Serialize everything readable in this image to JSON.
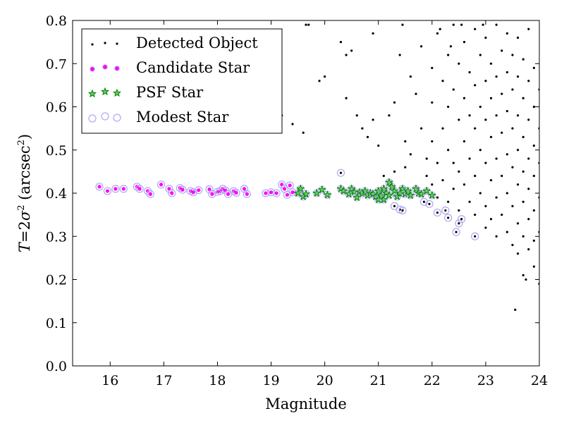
{
  "chart_data": {
    "type": "scatter",
    "xlabel": "Magnitude",
    "ylabel_parts": [
      "T",
      "=",
      "2",
      "σ",
      "2",
      " (arcsec",
      "2",
      ")"
    ],
    "xlim": [
      15.3,
      24
    ],
    "ylim": [
      0.0,
      0.8
    ],
    "x_ticks": [
      "16",
      "17",
      "18",
      "19",
      "20",
      "21",
      "22",
      "23",
      "24"
    ],
    "y_ticks": [
      "0.0",
      "0.1",
      "0.2",
      "0.3",
      "0.4",
      "0.5",
      "0.6",
      "0.7",
      "0.8"
    ],
    "grid": false,
    "legend_position": "top-left",
    "colors": {
      "detected": "#000000",
      "candidate": "#ff00ff",
      "psf": "#008000",
      "modest": "#b0a8f0"
    },
    "series": [
      {
        "name": "Detected Object",
        "marker": "dot",
        "points": [
          [
            19.2,
            0.58
          ],
          [
            19.4,
            0.56
          ],
          [
            19.6,
            0.54
          ],
          [
            19.7,
            0.79
          ],
          [
            19.9,
            0.66
          ],
          [
            20.0,
            0.67
          ],
          [
            20.3,
            0.75
          ],
          [
            20.4,
            0.72
          ],
          [
            20.4,
            0.62
          ],
          [
            20.5,
            0.73
          ],
          [
            20.6,
            0.58
          ],
          [
            20.7,
            0.55
          ],
          [
            20.8,
            0.53
          ],
          [
            20.9,
            0.57
          ],
          [
            21.0,
            0.51
          ],
          [
            21.1,
            0.44
          ],
          [
            21.2,
            0.58
          ],
          [
            21.3,
            0.61
          ],
          [
            21.3,
            0.45
          ],
          [
            21.4,
            0.72
          ],
          [
            21.5,
            0.52
          ],
          [
            21.5,
            0.46
          ],
          [
            21.6,
            0.67
          ],
          [
            21.6,
            0.49
          ],
          [
            21.7,
            0.63
          ],
          [
            21.7,
            0.41
          ],
          [
            21.8,
            0.74
          ],
          [
            21.8,
            0.55
          ],
          [
            21.9,
            0.48
          ],
          [
            21.9,
            0.44
          ],
          [
            22.0,
            0.69
          ],
          [
            22.0,
            0.61
          ],
          [
            22.0,
            0.52
          ],
          [
            22.0,
            0.42
          ],
          [
            22.1,
            0.77
          ],
          [
            22.1,
            0.47
          ],
          [
            22.1,
            0.39
          ],
          [
            22.2,
            0.66
          ],
          [
            22.2,
            0.55
          ],
          [
            22.2,
            0.43
          ],
          [
            22.3,
            0.72
          ],
          [
            22.3,
            0.6
          ],
          [
            22.3,
            0.5
          ],
          [
            22.3,
            0.38
          ],
          [
            22.4,
            0.79
          ],
          [
            22.4,
            0.64
          ],
          [
            22.4,
            0.47
          ],
          [
            22.4,
            0.41
          ],
          [
            22.5,
            0.7
          ],
          [
            22.5,
            0.57
          ],
          [
            22.5,
            0.45
          ],
          [
            22.5,
            0.36
          ],
          [
            22.6,
            0.75
          ],
          [
            22.6,
            0.62
          ],
          [
            22.6,
            0.52
          ],
          [
            22.6,
            0.42
          ],
          [
            22.7,
            0.68
          ],
          [
            22.7,
            0.58
          ],
          [
            22.7,
            0.48
          ],
          [
            22.7,
            0.38
          ],
          [
            22.8,
            0.78
          ],
          [
            22.8,
            0.65
          ],
          [
            22.8,
            0.55
          ],
          [
            22.8,
            0.44
          ],
          [
            22.8,
            0.35
          ],
          [
            22.9,
            0.72
          ],
          [
            22.9,
            0.6
          ],
          [
            22.9,
            0.5
          ],
          [
            22.9,
            0.4
          ],
          [
            23.0,
            0.76
          ],
          [
            23.0,
            0.66
          ],
          [
            23.0,
            0.57
          ],
          [
            23.0,
            0.47
          ],
          [
            23.0,
            0.37
          ],
          [
            23.0,
            0.32
          ],
          [
            23.1,
            0.7
          ],
          [
            23.1,
            0.62
          ],
          [
            23.1,
            0.53
          ],
          [
            23.1,
            0.43
          ],
          [
            23.1,
            0.34
          ],
          [
            23.2,
            0.79
          ],
          [
            23.2,
            0.67
          ],
          [
            23.2,
            0.58
          ],
          [
            23.2,
            0.48
          ],
          [
            23.2,
            0.39
          ],
          [
            23.2,
            0.3
          ],
          [
            23.3,
            0.73
          ],
          [
            23.3,
            0.63
          ],
          [
            23.3,
            0.54
          ],
          [
            23.3,
            0.44
          ],
          [
            23.3,
            0.35
          ],
          [
            23.4,
            0.77
          ],
          [
            23.4,
            0.68
          ],
          [
            23.4,
            0.59
          ],
          [
            23.4,
            0.49
          ],
          [
            23.4,
            0.4
          ],
          [
            23.4,
            0.31
          ],
          [
            23.5,
            0.72
          ],
          [
            23.5,
            0.64
          ],
          [
            23.5,
            0.55
          ],
          [
            23.5,
            0.46
          ],
          [
            23.5,
            0.37
          ],
          [
            23.5,
            0.28
          ],
          [
            23.6,
            0.76
          ],
          [
            23.6,
            0.67
          ],
          [
            23.6,
            0.58
          ],
          [
            23.6,
            0.5
          ],
          [
            23.6,
            0.42
          ],
          [
            23.6,
            0.33
          ],
          [
            23.6,
            0.26
          ],
          [
            23.7,
            0.71
          ],
          [
            23.7,
            0.62
          ],
          [
            23.7,
            0.53
          ],
          [
            23.7,
            0.45
          ],
          [
            23.7,
            0.38
          ],
          [
            23.7,
            0.3
          ],
          [
            23.7,
            0.21
          ],
          [
            23.8,
            0.78
          ],
          [
            23.8,
            0.66
          ],
          [
            23.8,
            0.57
          ],
          [
            23.8,
            0.48
          ],
          [
            23.8,
            0.41
          ],
          [
            23.8,
            0.34
          ],
          [
            23.8,
            0.27
          ],
          [
            23.9,
            0.69
          ],
          [
            23.9,
            0.6
          ],
          [
            23.9,
            0.51
          ],
          [
            23.9,
            0.44
          ],
          [
            23.9,
            0.36
          ],
          [
            23.9,
            0.29
          ],
          [
            23.9,
            0.23
          ],
          [
            24.0,
            0.64
          ],
          [
            24.0,
            0.55
          ],
          [
            24.0,
            0.47
          ],
          [
            24.0,
            0.39
          ],
          [
            24.0,
            0.31
          ],
          [
            24.0,
            0.19
          ],
          [
            23.55,
            0.13
          ],
          [
            23.75,
            0.2
          ],
          [
            22.15,
            0.78
          ],
          [
            22.35,
            0.74
          ],
          [
            22.55,
            0.79
          ],
          [
            22.95,
            0.79
          ],
          [
            21.45,
            0.79
          ],
          [
            20.9,
            0.77
          ],
          [
            19.65,
            0.79
          ]
        ]
      },
      {
        "name": "Candidate Star",
        "marker": "magenta-dot",
        "points": [
          [
            15.8,
            0.415
          ],
          [
            15.95,
            0.405
          ],
          [
            16.1,
            0.41
          ],
          [
            16.25,
            0.41
          ],
          [
            16.5,
            0.415
          ],
          [
            16.55,
            0.41
          ],
          [
            16.7,
            0.405
          ],
          [
            16.75,
            0.398
          ],
          [
            16.95,
            0.42
          ],
          [
            17.1,
            0.41
          ],
          [
            17.15,
            0.4
          ],
          [
            17.3,
            0.412
          ],
          [
            17.35,
            0.408
          ],
          [
            17.5,
            0.405
          ],
          [
            17.55,
            0.402
          ],
          [
            17.65,
            0.407
          ],
          [
            17.85,
            0.409
          ],
          [
            17.9,
            0.398
          ],
          [
            18.0,
            0.403
          ],
          [
            18.05,
            0.405
          ],
          [
            18.1,
            0.41
          ],
          [
            18.15,
            0.406
          ],
          [
            18.2,
            0.398
          ],
          [
            18.3,
            0.405
          ],
          [
            18.35,
            0.401
          ],
          [
            18.5,
            0.41
          ],
          [
            18.55,
            0.398
          ],
          [
            18.9,
            0.4
          ],
          [
            19.0,
            0.402
          ],
          [
            19.1,
            0.4
          ],
          [
            19.2,
            0.42
          ],
          [
            19.25,
            0.41
          ],
          [
            19.3,
            0.396
          ],
          [
            19.35,
            0.418
          ],
          [
            19.4,
            0.402
          ]
        ]
      },
      {
        "name": "PSF Star",
        "marker": "green-star",
        "points": [
          [
            19.5,
            0.4
          ],
          [
            19.55,
            0.41
          ],
          [
            19.6,
            0.392
          ],
          [
            19.65,
            0.398
          ],
          [
            19.85,
            0.4
          ],
          [
            19.95,
            0.408
          ],
          [
            20.05,
            0.396
          ],
          [
            20.3,
            0.41
          ],
          [
            20.35,
            0.405
          ],
          [
            20.45,
            0.398
          ],
          [
            20.5,
            0.41
          ],
          [
            20.55,
            0.403
          ],
          [
            20.6,
            0.39
          ],
          [
            20.65,
            0.402
          ],
          [
            20.7,
            0.399
          ],
          [
            20.75,
            0.405
          ],
          [
            20.8,
            0.395
          ],
          [
            20.85,
            0.4
          ],
          [
            20.9,
            0.398
          ],
          [
            20.95,
            0.392
          ],
          [
            21.0,
            0.405
          ],
          [
            21.0,
            0.385
          ],
          [
            21.05,
            0.395
          ],
          [
            21.1,
            0.41
          ],
          [
            21.1,
            0.385
          ],
          [
            21.15,
            0.4
          ],
          [
            21.2,
            0.425
          ],
          [
            21.2,
            0.395
          ],
          [
            21.25,
            0.415
          ],
          [
            21.3,
            0.405
          ],
          [
            21.35,
            0.392
          ],
          [
            21.4,
            0.4
          ],
          [
            21.45,
            0.41
          ],
          [
            21.5,
            0.398
          ],
          [
            21.55,
            0.405
          ],
          [
            21.6,
            0.395
          ],
          [
            21.7,
            0.41
          ],
          [
            21.75,
            0.4
          ],
          [
            21.8,
            0.398
          ],
          [
            21.9,
            0.405
          ],
          [
            22.0,
            0.395
          ]
        ]
      },
      {
        "name": "Modest Star",
        "marker": "open-circle",
        "points": [
          [
            20.3,
            0.447
          ],
          [
            21.3,
            0.37
          ],
          [
            21.4,
            0.362
          ],
          [
            21.45,
            0.36
          ],
          [
            22.1,
            0.355
          ],
          [
            22.25,
            0.36
          ],
          [
            22.3,
            0.343
          ],
          [
            22.45,
            0.31
          ],
          [
            22.5,
            0.33
          ],
          [
            22.55,
            0.34
          ],
          [
            22.8,
            0.3
          ],
          [
            21.85,
            0.38
          ],
          [
            21.95,
            0.375
          ]
        ]
      }
    ]
  }
}
